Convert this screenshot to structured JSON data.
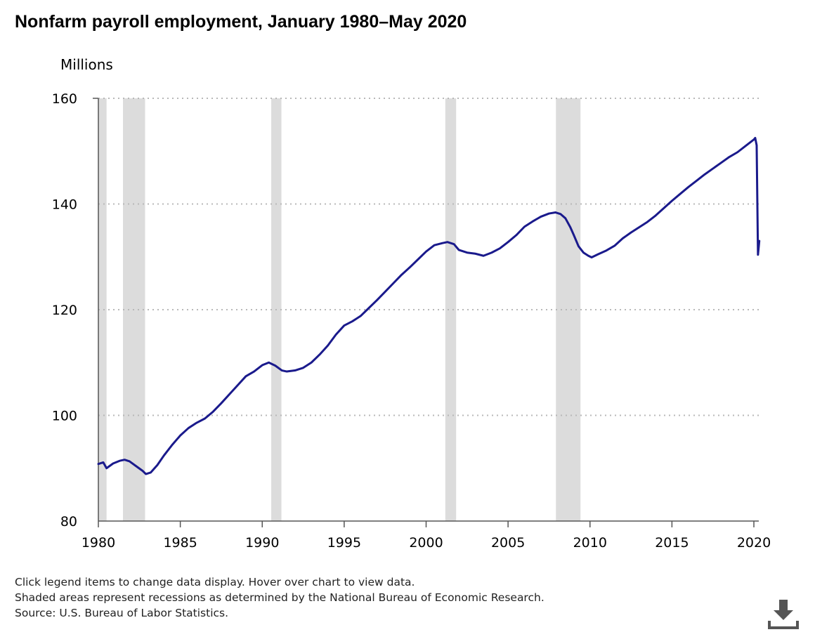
{
  "chart_data": {
    "type": "line",
    "title": "Nonfarm payroll employment, January 1980–May 2020",
    "ylabel": "Millions",
    "xlabel": "",
    "xlim": [
      1980,
      2020.45
    ],
    "ylim": [
      80,
      160
    ],
    "x_ticks": [
      "1980",
      "1985",
      "1990",
      "1995",
      "2000",
      "2005",
      "2010",
      "2015",
      "2020"
    ],
    "y_ticks": [
      "160",
      "140",
      "120",
      "100",
      "80"
    ],
    "grid": "horizontal dotted",
    "line_color": "#1a1a8c",
    "recession_color": "#dcdcdc",
    "recessions": [
      {
        "start": 1980.0,
        "end": 1980.5
      },
      {
        "start": 1981.5,
        "end": 1982.85
      },
      {
        "start": 1990.55,
        "end": 1991.17
      },
      {
        "start": 2001.17,
        "end": 2001.83
      },
      {
        "start": 2007.92,
        "end": 2009.42
      }
    ],
    "series": [
      {
        "x": [
          1980.0,
          1980.3,
          1980.5,
          1980.9,
          1981.3,
          1981.6,
          1981.9,
          1982.3,
          1982.7,
          1982.9,
          1983.2,
          1983.6,
          1984.0,
          1984.5,
          1985.0,
          1985.5,
          1986.0,
          1986.5,
          1987.0,
          1987.5,
          1988.0,
          1988.5,
          1989.0,
          1989.5,
          1990.0,
          1990.4,
          1990.8,
          1991.2,
          1991.5,
          1992.0,
          1992.5,
          1993.0,
          1993.5,
          1994.0,
          1994.5,
          1995.0,
          1995.5,
          1996.0,
          1996.5,
          1997.0,
          1997.5,
          1998.0,
          1998.5,
          1999.0,
          1999.5,
          2000.0,
          2000.5,
          2001.0,
          2001.3,
          2001.7,
          2002.0,
          2002.5,
          2003.0,
          2003.5,
          2004.0,
          2004.5,
          2005.0,
          2005.5,
          2006.0,
          2006.5,
          2007.0,
          2007.5,
          2007.9,
          2008.2,
          2008.5,
          2008.8,
          2009.0,
          2009.3,
          2009.6,
          2009.9,
          2010.1,
          2010.5,
          2011.0,
          2011.5,
          2012.0,
          2012.5,
          2013.0,
          2013.5,
          2014.0,
          2014.5,
          2015.0,
          2015.5,
          2016.0,
          2016.5,
          2017.0,
          2017.5,
          2018.0,
          2018.5,
          2019.0,
          2019.5,
          2020.0,
          2020.08,
          2020.17,
          2020.25,
          2020.33
        ],
        "y": [
          90.8,
          91.1,
          90.0,
          90.9,
          91.4,
          91.6,
          91.3,
          90.4,
          89.5,
          88.9,
          89.2,
          90.6,
          92.4,
          94.4,
          96.2,
          97.6,
          98.6,
          99.4,
          100.7,
          102.3,
          104.0,
          105.7,
          107.4,
          108.3,
          109.5,
          110.0,
          109.4,
          108.5,
          108.3,
          108.5,
          109.0,
          110.0,
          111.5,
          113.2,
          115.3,
          117.0,
          117.8,
          118.8,
          120.3,
          121.8,
          123.4,
          125.0,
          126.6,
          128.0,
          129.5,
          131.0,
          132.2,
          132.6,
          132.8,
          132.4,
          131.3,
          130.8,
          130.6,
          130.2,
          130.8,
          131.6,
          132.8,
          134.1,
          135.7,
          136.7,
          137.6,
          138.2,
          138.4,
          138.1,
          137.3,
          135.6,
          134.2,
          132.0,
          130.8,
          130.2,
          129.9,
          130.5,
          131.2,
          132.1,
          133.5,
          134.6,
          135.6,
          136.6,
          137.8,
          139.2,
          140.6,
          141.9,
          143.2,
          144.4,
          145.6,
          146.7,
          147.8,
          148.9,
          149.8,
          151.0,
          152.2,
          152.5,
          151.1,
          130.4,
          133.0
        ]
      }
    ]
  },
  "notes": {
    "line1": "Click legend items to change data display. Hover over chart to view data.",
    "line2": "Shaded areas represent recessions as determined by the National Bureau of Economic Research.",
    "line3": "Source: U.S. Bureau of Labor Statistics."
  },
  "download_icon": "download-icon"
}
